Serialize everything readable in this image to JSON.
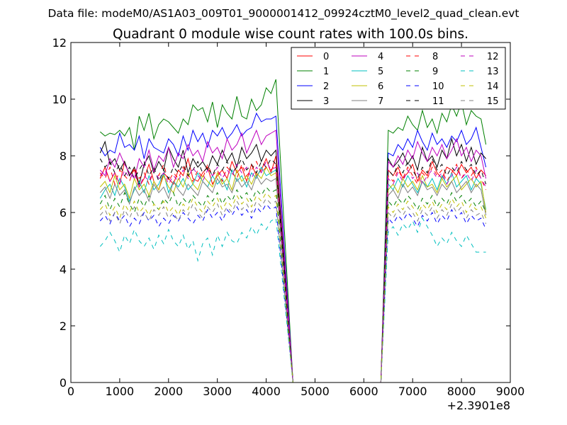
{
  "suptitle": "Data file: modeM0/AS1A03_009T01_9000001412_09924cztM0_level2_quad_clean.evt",
  "chart_data": {
    "type": "line",
    "title": "Quadrant 0 module wise count rates with 100.0s bins.",
    "xlabel": "",
    "ylabel": "",
    "x_offset_label": "+2.3901e8",
    "xlim": [
      0,
      9000
    ],
    "ylim": [
      0,
      12
    ],
    "xticks": [
      0,
      1000,
      2000,
      3000,
      4000,
      5000,
      6000,
      7000,
      8000,
      9000
    ],
    "yticks": [
      0,
      2,
      4,
      6,
      8,
      10,
      12
    ],
    "grid": false,
    "legend_position": "top-right",
    "legend_columns": 4,
    "x": {
      "start": 600,
      "step": 100,
      "end": 8550
    },
    "gap": {
      "x_range": [
        4550,
        6350
      ],
      "value": 0
    },
    "series": [
      {
        "name": "0",
        "color": "#ff0000",
        "dash": "solid",
        "values_pre_gap": [
          7.2,
          7.6,
          7.1,
          7.4,
          7.0,
          7.8,
          7.3,
          7.5,
          6.9,
          7.2,
          7.7,
          7.1,
          6.8,
          7.4,
          7.2,
          7.0,
          7.5,
          7.3,
          7.9,
          7.2,
          7.1,
          7.4,
          7.6,
          7.0,
          7.3,
          7.5,
          7.2,
          7.8,
          7.4,
          7.6,
          7.1,
          7.7,
          7.3,
          7.5,
          7.9,
          7.4,
          8.0
        ],
        "values_post_gap": [
          7.5,
          7.3,
          7.6,
          7.2,
          7.4,
          7.7,
          7.1,
          7.5,
          7.3,
          7.8,
          7.4,
          7.2,
          7.6,
          7.5,
          7.3,
          7.7,
          7.4,
          7.6,
          7.2,
          7.5,
          7.3
        ]
      },
      {
        "name": "1",
        "color": "#008000",
        "dash": "solid",
        "values_pre_gap": [
          8.85,
          8.7,
          8.8,
          8.75,
          8.9,
          8.7,
          9.0,
          8.2,
          9.4,
          8.9,
          9.5,
          8.6,
          9.1,
          9.3,
          9.2,
          9.0,
          8.8,
          9.3,
          9.1,
          9.8,
          9.6,
          9.7,
          9.2,
          9.9,
          9.0,
          9.8,
          9.5,
          9.3,
          10.1,
          9.4,
          9.3,
          10.0,
          9.6,
          9.8,
          10.4,
          10.2,
          10.7
        ],
        "values_post_gap": [
          8.9,
          8.8,
          9.0,
          8.9,
          9.4,
          9.1,
          8.9,
          9.6,
          9.0,
          9.3,
          8.8,
          9.5,
          9.2,
          9.8,
          9.4,
          9.9,
          9.1,
          9.6,
          9.4,
          9.3,
          8.4
        ]
      },
      {
        "name": "2",
        "color": "#0000ff",
        "dash": "solid",
        "values_pre_gap": [
          8.3,
          8.0,
          8.2,
          8.1,
          8.8,
          8.3,
          8.4,
          8.2,
          8.7,
          7.9,
          8.6,
          8.3,
          8.2,
          8.1,
          8.6,
          8.4,
          8.0,
          8.7,
          8.2,
          8.9,
          8.5,
          8.8,
          8.3,
          8.9,
          8.7,
          9.0,
          8.6,
          8.8,
          9.1,
          8.7,
          8.9,
          9.0,
          9.5,
          9.2,
          9.3,
          9.3,
          9.4
        ],
        "values_post_gap": [
          8.1,
          8.0,
          8.4,
          8.2,
          8.6,
          8.3,
          8.9,
          8.5,
          8.2,
          8.8,
          8.4,
          8.6,
          8.3,
          8.7,
          8.5,
          8.9,
          8.4,
          8.6,
          9.0,
          8.3,
          7.6
        ]
      },
      {
        "name": "3",
        "color": "#000000",
        "dash": "solid",
        "values_pre_gap": [
          8.1,
          8.5,
          7.7,
          7.9,
          7.5,
          7.8,
          7.3,
          7.6,
          7.0,
          7.7,
          8.0,
          7.4,
          7.8,
          7.5,
          8.3,
          7.9,
          7.6,
          8.2,
          7.4,
          7.9,
          7.6,
          7.8,
          7.5,
          8.0,
          7.7,
          8.2,
          7.8,
          8.1,
          7.6,
          8.3,
          7.9,
          8.1,
          8.4,
          7.8,
          8.2,
          8.0,
          8.2
        ],
        "values_post_gap": [
          7.9,
          7.6,
          7.8,
          8.1,
          7.7,
          8.0,
          7.5,
          8.3,
          7.8,
          8.0,
          7.6,
          8.2,
          7.9,
          8.6,
          8.0,
          8.4,
          7.8,
          8.3,
          7.7,
          8.1,
          7.9
        ]
      },
      {
        "name": "4",
        "color": "#bf00bf",
        "dash": "solid",
        "values_pre_gap": [
          7.5,
          7.3,
          7.9,
          7.6,
          8.1,
          7.7,
          7.4,
          7.2,
          7.9,
          7.6,
          8.2,
          7.5,
          8.0,
          7.8,
          8.3,
          7.6,
          8.1,
          7.9,
          8.4,
          8.0,
          8.2,
          7.8,
          8.5,
          8.1,
          8.3,
          7.9,
          8.6,
          8.2,
          8.4,
          8.8,
          8.1,
          8.5,
          8.9,
          8.4,
          8.7,
          8.8,
          8.9
        ],
        "values_post_gap": [
          7.8,
          7.6,
          8.0,
          7.7,
          8.2,
          7.9,
          8.5,
          8.1,
          7.8,
          8.3,
          8.0,
          8.4,
          7.9,
          8.2,
          8.6,
          8.0,
          8.3,
          7.8,
          8.2,
          8.0,
          7.2
        ]
      },
      {
        "name": "5",
        "color": "#00bfbf",
        "dash": "solid",
        "values_pre_gap": [
          6.5,
          6.8,
          7.0,
          6.6,
          7.2,
          6.9,
          6.4,
          6.8,
          7.1,
          6.7,
          7.3,
          6.8,
          7.0,
          7.4,
          6.7,
          7.1,
          6.9,
          7.2,
          6.8,
          7.0,
          7.4,
          7.1,
          6.9,
          7.3,
          7.0,
          7.2,
          6.8,
          7.5,
          7.1,
          7.3,
          6.9,
          7.4,
          7.2,
          7.6,
          7.3,
          7.4,
          7.5
        ],
        "values_post_gap": [
          7.0,
          6.8,
          7.2,
          6.9,
          7.3,
          7.0,
          6.7,
          7.1,
          6.9,
          7.2,
          6.8,
          7.3,
          7.0,
          7.4,
          6.9,
          7.1,
          7.3,
          6.8,
          7.2,
          7.0,
          6.1
        ]
      },
      {
        "name": "6",
        "color": "#bfbf00",
        "dash": "solid",
        "values_pre_gap": [
          6.9,
          7.1,
          6.7,
          7.3,
          6.8,
          7.0,
          6.5,
          7.2,
          6.8,
          7.0,
          6.6,
          7.1,
          6.8,
          7.3,
          6.9,
          6.7,
          7.2,
          6.9,
          7.4,
          7.0,
          6.8,
          7.3,
          7.1,
          6.9,
          7.4,
          7.0,
          7.2,
          6.8,
          7.5,
          7.1,
          7.3,
          7.0,
          7.4,
          7.2,
          7.6,
          7.3,
          7.4
        ],
        "values_post_gap": [
          6.8,
          7.0,
          6.7,
          7.2,
          6.9,
          7.1,
          6.8,
          7.3,
          6.9,
          7.0,
          6.7,
          7.2,
          6.9,
          7.1,
          7.3,
          6.8,
          7.0,
          7.2,
          6.9,
          7.1,
          6.0
        ]
      },
      {
        "name": "7",
        "color": "#808080",
        "dash": "solid",
        "values_pre_gap": [
          6.7,
          6.9,
          6.5,
          7.0,
          6.6,
          6.8,
          6.3,
          6.9,
          6.6,
          6.8,
          6.4,
          7.0,
          6.7,
          6.9,
          6.5,
          7.1,
          6.8,
          6.6,
          7.0,
          6.8,
          6.6,
          7.1,
          6.9,
          6.7,
          7.2,
          6.9,
          7.0,
          6.7,
          7.2,
          6.9,
          7.1,
          6.8,
          7.3,
          7.0,
          7.2,
          7.1,
          7.2
        ],
        "values_post_gap": [
          6.6,
          6.8,
          6.5,
          7.0,
          6.7,
          6.9,
          6.6,
          7.1,
          6.8,
          6.9,
          6.6,
          7.0,
          6.8,
          7.1,
          6.7,
          6.9,
          7.1,
          6.7,
          7.0,
          6.8,
          5.9
        ]
      },
      {
        "name": "8",
        "color": "#ff0000",
        "dash": "dashed",
        "values_pre_gap": [
          7.4,
          7.2,
          7.6,
          7.0,
          7.5,
          7.3,
          7.1,
          7.6,
          7.2,
          7.4,
          7.0,
          7.5,
          7.3,
          7.7,
          7.1,
          7.4,
          7.2,
          7.6,
          7.3,
          7.1,
          7.5,
          7.2,
          7.7,
          7.3,
          7.5,
          7.1,
          7.6,
          7.4,
          7.2,
          7.7,
          7.3,
          7.5,
          7.8,
          7.4,
          7.6,
          7.5,
          7.7
        ],
        "values_post_gap": [
          7.3,
          7.1,
          7.5,
          7.2,
          7.6,
          7.3,
          7.0,
          7.4,
          7.2,
          7.6,
          7.3,
          7.5,
          7.1,
          7.4,
          7.7,
          7.2,
          7.5,
          7.3,
          7.6,
          7.2,
          6.8
        ]
      },
      {
        "name": "9",
        "color": "#008000",
        "dash": "dashed",
        "values_pre_gap": [
          6.3,
          6.6,
          6.1,
          6.5,
          6.2,
          6.7,
          6.3,
          6.0,
          6.5,
          6.2,
          6.6,
          6.3,
          6.1,
          6.5,
          6.3,
          6.7,
          6.2,
          6.5,
          6.3,
          6.6,
          6.4,
          6.2,
          6.6,
          6.4,
          6.7,
          6.3,
          6.6,
          6.4,
          6.8,
          6.5,
          6.7,
          6.4,
          6.8,
          6.6,
          6.9,
          6.7,
          6.8
        ],
        "values_post_gap": [
          6.4,
          6.2,
          6.5,
          6.3,
          6.6,
          6.4,
          6.1,
          6.5,
          6.3,
          6.6,
          6.2,
          6.5,
          6.3,
          6.7,
          6.4,
          6.6,
          6.3,
          6.5,
          6.2,
          6.4,
          6.0
        ]
      },
      {
        "name": "10",
        "color": "#0000ff",
        "dash": "dashed",
        "values_pre_gap": [
          5.7,
          5.9,
          5.6,
          6.0,
          5.7,
          5.9,
          5.5,
          5.8,
          5.6,
          6.0,
          5.7,
          5.9,
          5.5,
          5.8,
          5.6,
          5.9,
          5.7,
          6.0,
          5.8,
          5.6,
          5.9,
          5.7,
          6.1,
          5.8,
          6.0,
          5.7,
          6.1,
          5.9,
          6.2,
          5.9,
          6.1,
          5.8,
          6.2,
          6.0,
          6.3,
          6.1,
          6.2
        ],
        "values_post_gap": [
          5.8,
          5.6,
          5.9,
          5.7,
          6.0,
          5.8,
          5.5,
          5.9,
          5.7,
          6.0,
          5.6,
          5.9,
          5.7,
          6.1,
          5.8,
          6.0,
          5.6,
          5.9,
          5.7,
          5.8,
          5.4
        ]
      },
      {
        "name": "11",
        "color": "#000000",
        "dash": "dashed",
        "values_pre_gap": [
          7.9,
          7.6,
          7.8,
          7.4,
          7.7,
          7.3,
          7.6,
          7.2,
          7.5,
          7.8,
          7.3,
          7.6,
          7.1,
          7.5,
          7.2,
          7.6,
          7.4,
          7.7,
          7.3,
          7.5,
          7.8,
          7.4,
          7.6,
          7.3,
          7.7,
          7.5,
          7.8,
          7.4,
          7.6,
          7.9,
          7.5,
          7.7,
          7.4,
          7.8,
          7.6,
          7.9,
          7.7
        ],
        "values_post_gap": [
          7.5,
          7.3,
          7.7,
          7.4,
          7.8,
          7.5,
          7.2,
          7.6,
          7.4,
          7.9,
          7.5,
          7.7,
          7.3,
          7.6,
          7.4,
          7.8,
          7.5,
          7.7,
          7.3,
          7.5,
          7.0
        ]
      },
      {
        "name": "12",
        "color": "#bf00bf",
        "dash": "dashed",
        "values_pre_gap": [
          7.3,
          7.5,
          7.1,
          7.4,
          7.0,
          7.5,
          7.2,
          7.4,
          6.9,
          7.3,
          7.1,
          7.5,
          7.2,
          7.4,
          7.0,
          7.3,
          7.1,
          7.5,
          7.2,
          7.6,
          7.3,
          7.1,
          7.5,
          7.3,
          7.6,
          7.2,
          7.5,
          7.3,
          7.7,
          7.4,
          7.6,
          7.2,
          7.6,
          7.4,
          7.8,
          7.5,
          7.6
        ],
        "values_post_gap": [
          7.2,
          7.0,
          7.4,
          7.1,
          7.5,
          7.2,
          7.4,
          7.0,
          7.3,
          7.5,
          7.2,
          7.4,
          7.0,
          7.3,
          7.6,
          7.2,
          7.4,
          7.1,
          7.5,
          7.2,
          6.9
        ]
      },
      {
        "name": "13",
        "color": "#00bfbf",
        "dash": "dashed",
        "values_pre_gap": [
          4.8,
          5.0,
          5.3,
          5.0,
          4.6,
          5.2,
          4.9,
          5.4,
          5.0,
          4.8,
          5.1,
          4.7,
          5.2,
          4.9,
          5.4,
          5.0,
          4.8,
          5.2,
          4.7,
          5.0,
          4.3,
          4.9,
          5.1,
          4.5,
          5.2,
          4.8,
          5.3,
          5.0,
          4.9,
          5.3,
          5.1,
          5.5,
          5.2,
          5.6,
          5.4,
          5.7,
          5.8
        ],
        "values_post_gap": [
          5.3,
          5.5,
          5.2,
          5.6,
          5.4,
          5.7,
          5.3,
          5.8,
          5.5,
          5.2,
          4.8,
          5.1,
          4.9,
          5.3,
          5.0,
          4.8,
          5.2,
          4.9,
          4.6,
          4.6,
          4.6
        ]
      },
      {
        "name": "14",
        "color": "#bfbf00",
        "dash": "dashed",
        "values_pre_gap": [
          6.1,
          6.3,
          5.9,
          6.2,
          5.8,
          6.3,
          6.0,
          6.4,
          6.0,
          6.2,
          5.9,
          6.3,
          6.1,
          6.4,
          6.0,
          6.2,
          5.9,
          6.3,
          6.1,
          6.5,
          6.2,
          6.0,
          6.4,
          6.2,
          6.5,
          6.1,
          6.4,
          6.2,
          6.6,
          6.3,
          6.5,
          6.2,
          6.6,
          6.4,
          6.7,
          6.5,
          6.6
        ],
        "values_post_gap": [
          6.2,
          6.0,
          6.3,
          6.1,
          6.4,
          6.2,
          5.9,
          6.3,
          6.1,
          6.4,
          6.0,
          6.3,
          6.1,
          6.5,
          6.2,
          6.4,
          6.0,
          6.3,
          6.1,
          6.2,
          5.8
        ]
      },
      {
        "name": "15",
        "color": "#808080",
        "dash": "dashed",
        "values_pre_gap": [
          5.9,
          6.1,
          5.7,
          6.0,
          5.6,
          6.1,
          5.8,
          6.2,
          5.8,
          6.0,
          5.7,
          6.1,
          5.9,
          6.2,
          5.8,
          6.0,
          5.7,
          6.1,
          5.9,
          6.3,
          6.0,
          5.8,
          6.2,
          6.0,
          6.3,
          5.9,
          6.2,
          6.0,
          6.4,
          6.1,
          6.3,
          6.0,
          6.4,
          6.2,
          6.5,
          6.3,
          6.4
        ],
        "values_post_gap": [
          6.0,
          5.8,
          6.1,
          5.9,
          6.2,
          6.0,
          5.7,
          6.1,
          5.9,
          6.2,
          5.8,
          6.1,
          5.9,
          6.3,
          6.0,
          6.2,
          5.8,
          6.1,
          5.9,
          6.0,
          5.6
        ]
      }
    ]
  }
}
